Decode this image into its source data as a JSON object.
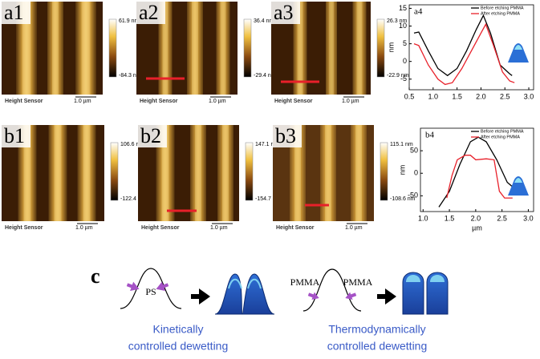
{
  "panels": [
    {
      "label": "a1",
      "max": "61.9 nm",
      "min": "-84.3 nm",
      "sensor": "Height Sensor",
      "scale": "1.0 µm"
    },
    {
      "label": "a2",
      "max": "36.4 nm",
      "min": "-29.4 nm",
      "sensor": "Height Sensor",
      "scale": "1.0 µm"
    },
    {
      "label": "a3",
      "max": "26.3 nm",
      "min": "-22.9 nm",
      "sensor": "Height Sensor",
      "scale": "1.0 µm"
    },
    {
      "label": "b1",
      "max": "106.6 nm",
      "min": "-122.4 nm",
      "sensor": "Height Sensor",
      "scale": "1.0 µm"
    },
    {
      "label": "b2",
      "max": "147.1 nm",
      "min": "-154.7 nm",
      "sensor": "Height Sensor",
      "scale": "1.0 µm"
    },
    {
      "label": "b3",
      "max": "115.1 nm",
      "min": "-108.6 nm",
      "sensor": "Height Sensor",
      "scale": "1.0 µm"
    }
  ],
  "chart_data": [
    {
      "type": "line",
      "label": "a4",
      "ylabel": "nm",
      "xlim": [
        0.5,
        3.1
      ],
      "ylim": [
        -8,
        16
      ],
      "xticks": [
        0.5,
        {
          "value": 1,
          "label": "1.0"
        },
        1.5,
        {
          "value": 2,
          "label": "2.0"
        },
        2.5,
        {
          "value": 3,
          "label": "3.0"
        }
      ],
      "yticks": [
        -5,
        0,
        5,
        10,
        15
      ],
      "series": [
        {
          "name": "Before etching PMMA",
          "color": "#000000",
          "x": [
            0.6,
            0.7,
            0.9,
            1.1,
            1.3,
            1.5,
            1.7,
            1.9,
            2.05,
            2.2,
            2.4,
            2.6,
            2.65
          ],
          "values": [
            8,
            8.3,
            3,
            -2,
            -4,
            -2,
            3,
            9,
            13,
            8,
            -1,
            -3.5,
            -4
          ]
        },
        {
          "name": "After etching PMMA",
          "color": "#e8202a",
          "x": [
            0.6,
            0.7,
            0.9,
            1.1,
            1.25,
            1.4,
            1.6,
            1.8,
            2.0,
            2.1,
            2.25,
            2.45,
            2.6,
            2.7
          ],
          "values": [
            5,
            4.5,
            -1,
            -5,
            -6.5,
            -6,
            -2,
            3,
            8,
            10.5,
            5,
            -3,
            -5.5,
            -6
          ]
        }
      ]
    },
    {
      "type": "line",
      "label": "b4",
      "ylabel": "nm",
      "xlabel": "µm",
      "xlim": [
        0.95,
        3.1
      ],
      "ylim": [
        -85,
        100
      ],
      "xticks": [
        {
          "value": 1,
          "label": "1.0"
        },
        1.5,
        {
          "value": 2,
          "label": "2.0"
        },
        2.5,
        {
          "value": 3,
          "label": "3.0"
        }
      ],
      "yticks": [
        -50,
        0,
        50
      ],
      "series": [
        {
          "name": "Before etching PMMA",
          "color": "#000000",
          "x": [
            1.3,
            1.5,
            1.7,
            1.9,
            2.05,
            2.2,
            2.4,
            2.6,
            2.8,
            2.85
          ],
          "values": [
            -75,
            -40,
            20,
            70,
            80,
            70,
            30,
            -20,
            -40,
            -45
          ]
        },
        {
          "name": "After etching PMMA",
          "color": "#e8202a",
          "x": [
            1.45,
            1.55,
            1.65,
            1.8,
            1.9,
            2.0,
            2.2,
            2.35,
            2.45,
            2.55,
            2.7
          ],
          "values": [
            -55,
            -5,
            30,
            40,
            40,
            30,
            32,
            30,
            -40,
            -55,
            -55
          ]
        }
      ]
    }
  ],
  "schematic": {
    "label": "c",
    "left": {
      "center": "PS",
      "caption": [
        "Kinetically",
        "controlled dewetting"
      ]
    },
    "right": {
      "left": "PMMA",
      "right": "PMMA",
      "caption": [
        "Thermodynamically",
        "controlled dewetting"
      ]
    }
  }
}
